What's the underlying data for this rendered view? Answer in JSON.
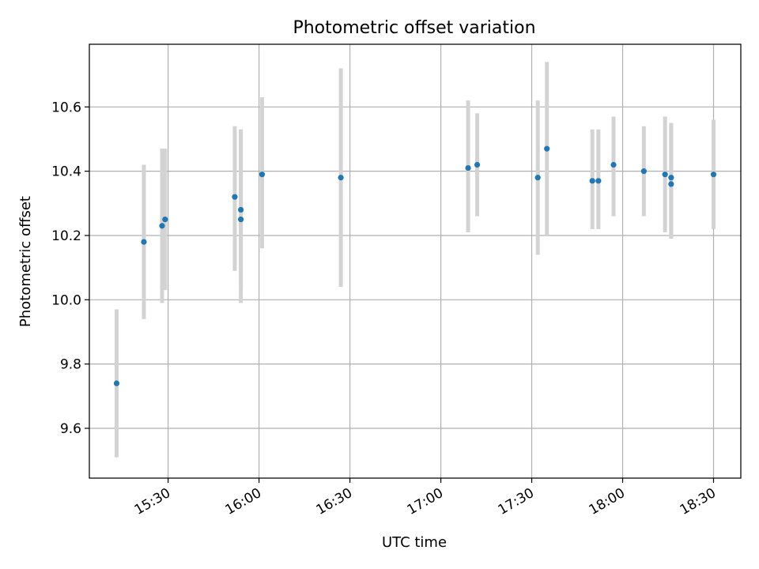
{
  "chart_data": {
    "type": "scatter",
    "title": "Photometric offset variation",
    "xlabel": "UTC time",
    "ylabel": "Photometric offset",
    "x_ticks": [
      "15:30",
      "16:00",
      "16:30",
      "17:00",
      "17:30",
      "18:00",
      "18:30"
    ],
    "y_ticks": [
      "9.6",
      "9.8",
      "10.0",
      "10.2",
      "10.4",
      "10.6"
    ],
    "xlim": [
      "15:04",
      "18:39"
    ],
    "ylim": [
      9.445,
      10.795
    ],
    "grid": true,
    "point_color": "#1f77b4",
    "errorbar_color": "#d3d3d3",
    "points": [
      {
        "x": "15:13",
        "y": 9.74,
        "low": 9.51,
        "high": 9.97
      },
      {
        "x": "15:22",
        "y": 10.18,
        "low": 9.94,
        "high": 10.42
      },
      {
        "x": "15:28",
        "y": 10.23,
        "low": 9.99,
        "high": 10.47
      },
      {
        "x": "15:29",
        "y": 10.25,
        "low": 10.03,
        "high": 10.47
      },
      {
        "x": "15:52",
        "y": 10.32,
        "low": 10.09,
        "high": 10.54
      },
      {
        "x": "15:54",
        "y": 10.28,
        "low": 10.04,
        "high": 10.53
      },
      {
        "x": "15:54",
        "y": 10.25,
        "low": 9.99,
        "high": 10.53
      },
      {
        "x": "16:01",
        "y": 10.39,
        "low": 10.16,
        "high": 10.63
      },
      {
        "x": "16:27",
        "y": 10.38,
        "low": 10.04,
        "high": 10.72
      },
      {
        "x": "17:09",
        "y": 10.41,
        "low": 10.21,
        "high": 10.62
      },
      {
        "x": "17:12",
        "y": 10.42,
        "low": 10.26,
        "high": 10.58
      },
      {
        "x": "17:32",
        "y": 10.38,
        "low": 10.14,
        "high": 10.62
      },
      {
        "x": "17:35",
        "y": 10.47,
        "low": 10.2,
        "high": 10.74
      },
      {
        "x": "17:50",
        "y": 10.37,
        "low": 10.22,
        "high": 10.53
      },
      {
        "x": "17:52",
        "y": 10.37,
        "low": 10.22,
        "high": 10.53
      },
      {
        "x": "17:57",
        "y": 10.42,
        "low": 10.26,
        "high": 10.57
      },
      {
        "x": "18:07",
        "y": 10.4,
        "low": 10.26,
        "high": 10.54
      },
      {
        "x": "18:14",
        "y": 10.39,
        "low": 10.21,
        "high": 10.57
      },
      {
        "x": "18:16",
        "y": 10.38,
        "low": 10.19,
        "high": 10.55
      },
      {
        "x": "18:16",
        "y": 10.36,
        "low": 10.19,
        "high": 10.55
      },
      {
        "x": "18:30",
        "y": 10.39,
        "low": 10.22,
        "high": 10.56
      }
    ]
  }
}
